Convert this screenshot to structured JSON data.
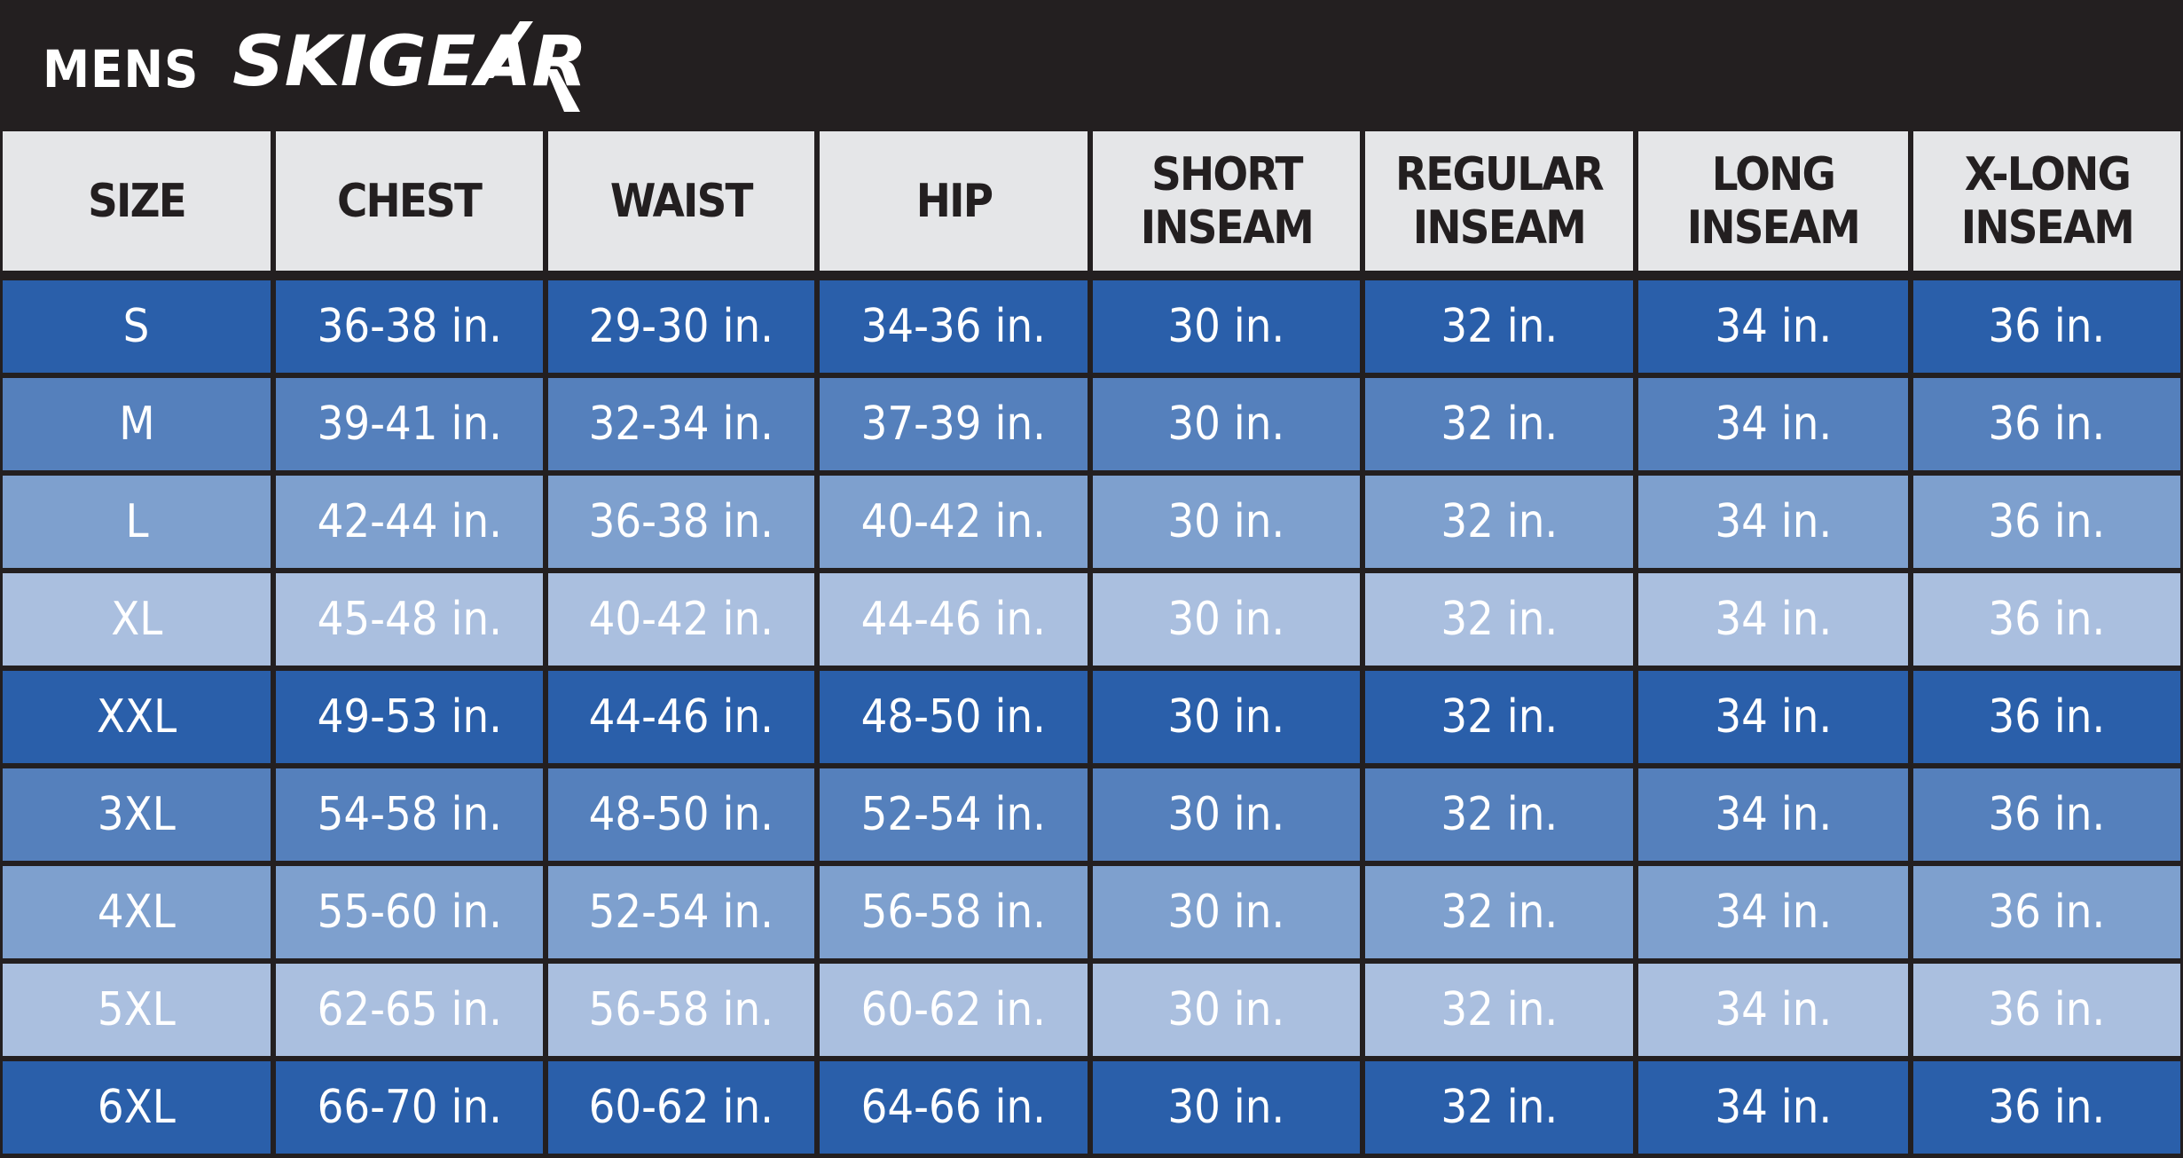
{
  "header": {
    "prefix": "MENS",
    "brand": "SKIGEAR"
  },
  "colors": {
    "background": "#231f20",
    "header_cell": "#e5e6e8",
    "header_text": "#231f20",
    "body_text": "#ffffff",
    "row_shades": [
      "#2a5faa",
      "#5580bc",
      "#7ea0ce",
      "#aabfdf"
    ]
  },
  "table": {
    "columns": [
      "SIZE",
      "CHEST",
      "WAIST",
      "HIP",
      "SHORT\nINSEAM",
      "REGULAR\nINSEAM",
      "LONG\nINSEAM",
      "X-LONG\nINSEAM"
    ],
    "rows": [
      {
        "shade": 0,
        "cells": [
          "S",
          "36-38 in.",
          "29-30 in.",
          "34-36 in.",
          "30 in.",
          "32 in.",
          "34 in.",
          "36 in."
        ]
      },
      {
        "shade": 1,
        "cells": [
          "M",
          "39-41 in.",
          "32-34 in.",
          "37-39 in.",
          "30 in.",
          "32 in.",
          "34 in.",
          "36 in."
        ]
      },
      {
        "shade": 2,
        "cells": [
          "L",
          "42-44 in.",
          "36-38 in.",
          "40-42 in.",
          "30 in.",
          "32 in.",
          "34 in.",
          "36 in."
        ]
      },
      {
        "shade": 3,
        "cells": [
          "XL",
          "45-48 in.",
          "40-42 in.",
          "44-46 in.",
          "30 in.",
          "32 in.",
          "34 in.",
          "36 in."
        ]
      },
      {
        "shade": 0,
        "cells": [
          "XXL",
          "49-53 in.",
          "44-46 in.",
          "48-50 in.",
          "30 in.",
          "32 in.",
          "34 in.",
          "36 in."
        ]
      },
      {
        "shade": 1,
        "cells": [
          "3XL",
          "54-58 in.",
          "48-50 in.",
          "52-54 in.",
          "30 in.",
          "32 in.",
          "34 in.",
          "36 in."
        ]
      },
      {
        "shade": 2,
        "cells": [
          "4XL",
          "55-60 in.",
          "52-54 in.",
          "56-58 in.",
          "30 in.",
          "32 in.",
          "34 in.",
          "36 in."
        ]
      },
      {
        "shade": 3,
        "cells": [
          "5XL",
          "62-65 in.",
          "56-58 in.",
          "60-62 in.",
          "30 in.",
          "32 in.",
          "34 in.",
          "36 in."
        ]
      },
      {
        "shade": 0,
        "cells": [
          "6XL",
          "66-70 in.",
          "60-62 in.",
          "64-66 in.",
          "30 in.",
          "32 in.",
          "34 in.",
          "36 in."
        ]
      }
    ]
  }
}
